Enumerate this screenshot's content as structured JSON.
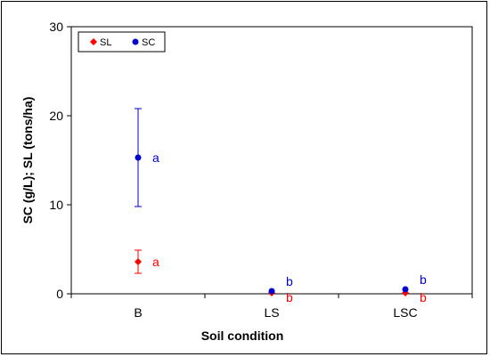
{
  "chart_data": {
    "type": "scatter",
    "xlabel": "Soil condition",
    "ylabel": "SC (g/L); SL (tons/ha)",
    "categories": [
      "B",
      "LS",
      "LSC"
    ],
    "ylim": [
      0,
      30
    ],
    "yticks": [
      "0",
      "10",
      "20",
      "30"
    ],
    "grid": false,
    "legend_position": "top-left",
    "series": [
      {
        "name": "SL",
        "color": "#ff0000",
        "marker": "diamond",
        "values": [
          3.6,
          0.1,
          0.1
        ],
        "error": [
          1.3,
          0,
          0
        ],
        "labels": [
          "a",
          "b",
          "b"
        ]
      },
      {
        "name": "SC",
        "color": "#0000cc",
        "marker": "circle",
        "values": [
          15.3,
          0.3,
          0.5
        ],
        "error": [
          5.5,
          0,
          0
        ],
        "labels": [
          "a",
          "b",
          "b"
        ]
      }
    ]
  }
}
